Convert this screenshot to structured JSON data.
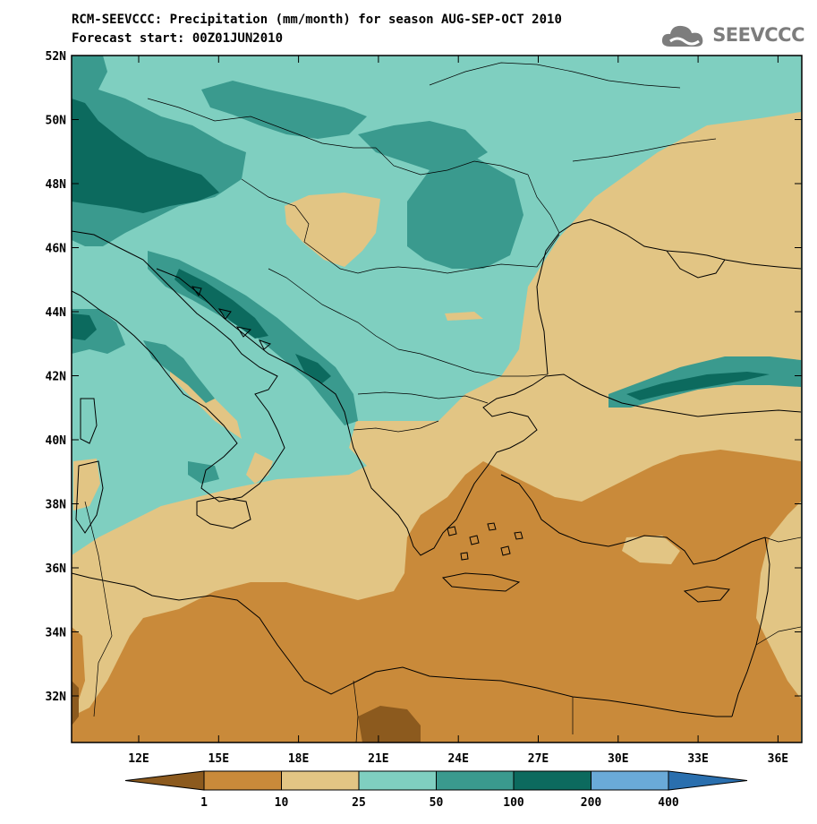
{
  "header": {
    "title": "RCM-SEEVCCC: Precipitation (mm/month) for season AUG-SEP-OCT 2010",
    "subtitle": "Forecast start: 00Z01JUN2010"
  },
  "logo": {
    "text": "SEEVCCC",
    "icon": "cloud-icon"
  },
  "map": {
    "units": "mm/month",
    "region": "South-East Europe",
    "lat_labels": [
      "52N",
      "50N",
      "48N",
      "46N",
      "44N",
      "42N",
      "40N",
      "38N",
      "36N",
      "34N",
      "32N"
    ],
    "lon_labels": [
      "12E",
      "15E",
      "18E",
      "21E",
      "24E",
      "27E",
      "30E",
      "33E",
      "36E"
    ]
  },
  "colorbar": {
    "thresholds": [
      "1",
      "10",
      "25",
      "50",
      "100",
      "200",
      "400"
    ],
    "colors": [
      "#8c5a1e",
      "#c98a3a",
      "#e2c584",
      "#7fcfc0",
      "#3a9a8e",
      "#0c6a5e",
      "#6aaad8",
      "#2a6fae"
    ]
  }
}
